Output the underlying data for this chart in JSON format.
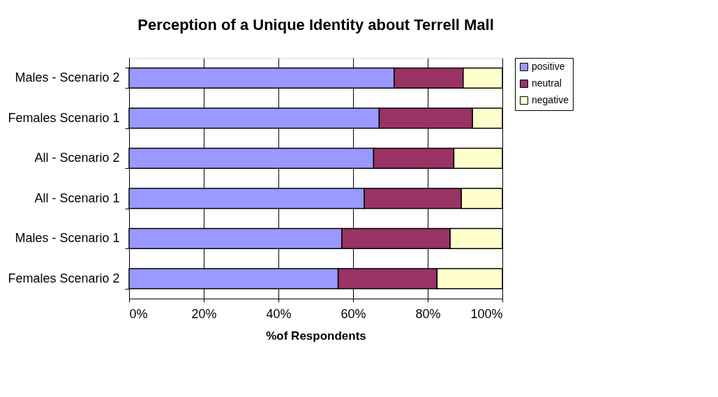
{
  "chart_data": {
    "type": "bar",
    "orientation": "horizontal",
    "stacked": true,
    "title": "Perception of a Unique Identity about Terrell Mall",
    "xlabel": "%of Respondents",
    "categories": [
      "Males - Scenario 2",
      "Females Scenario 1",
      "All - Scenario 2",
      "All - Scenario 1",
      "Males - Scenario 1",
      "Females Scenario 2"
    ],
    "series": [
      {
        "name": "positive",
        "color": "#9999ff",
        "values": [
          71,
          67,
          65.5,
          63,
          57,
          56
        ]
      },
      {
        "name": "neutral",
        "color": "#993366",
        "values": [
          18.5,
          25,
          21.5,
          26,
          29,
          26.5
        ]
      },
      {
        "name": "negative",
        "color": "#ffffcc",
        "values": [
          10.5,
          8,
          13,
          11,
          14,
          17.5
        ]
      }
    ],
    "xlim": [
      0,
      100
    ],
    "xticks": [
      {
        "value": 0,
        "label": "0%"
      },
      {
        "value": 20,
        "label": "20%"
      },
      {
        "value": 40,
        "label": "40%"
      },
      {
        "value": 60,
        "label": "60%"
      },
      {
        "value": 80,
        "label": "80%"
      },
      {
        "value": 100,
        "label": "100%"
      }
    ],
    "grid": "x",
    "legend": "right"
  }
}
